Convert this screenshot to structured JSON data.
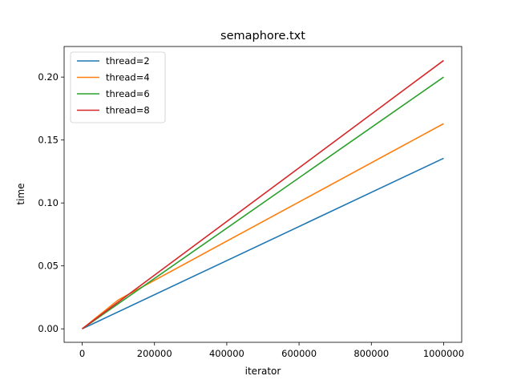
{
  "chart_data": {
    "type": "line",
    "title": "semaphore.txt",
    "xlabel": "iterator",
    "ylabel": "time",
    "xlim": [
      -50000,
      1050000
    ],
    "ylim": [
      -0.0107,
      0.2243
    ],
    "xticks": [
      0,
      200000,
      400000,
      600000,
      800000,
      1000000
    ],
    "xtick_labels": [
      "0",
      "200000",
      "400000",
      "600000",
      "800000",
      "1000000"
    ],
    "yticks": [
      0.0,
      0.05,
      0.1,
      0.15,
      0.2
    ],
    "ytick_labels": [
      "0.00",
      "0.05",
      "0.10",
      "0.15",
      "0.20"
    ],
    "grid": false,
    "legend_position": "upper-left",
    "series": [
      {
        "name": "thread=2",
        "color": "#1f77b4",
        "x": [
          0,
          1000000
        ],
        "y": [
          0.0,
          0.1355
        ]
      },
      {
        "name": "thread=4",
        "color": "#ff7f0e",
        "x": [
          0,
          100000,
          1000000
        ],
        "y": [
          0.0,
          0.023,
          0.163
        ]
      },
      {
        "name": "thread=6",
        "color": "#2ca02c",
        "x": [
          0,
          1000000
        ],
        "y": [
          0.0,
          0.2
        ]
      },
      {
        "name": "thread=8",
        "color": "#d62728",
        "x": [
          0,
          1000000
        ],
        "y": [
          0.0,
          0.2132
        ]
      }
    ]
  }
}
